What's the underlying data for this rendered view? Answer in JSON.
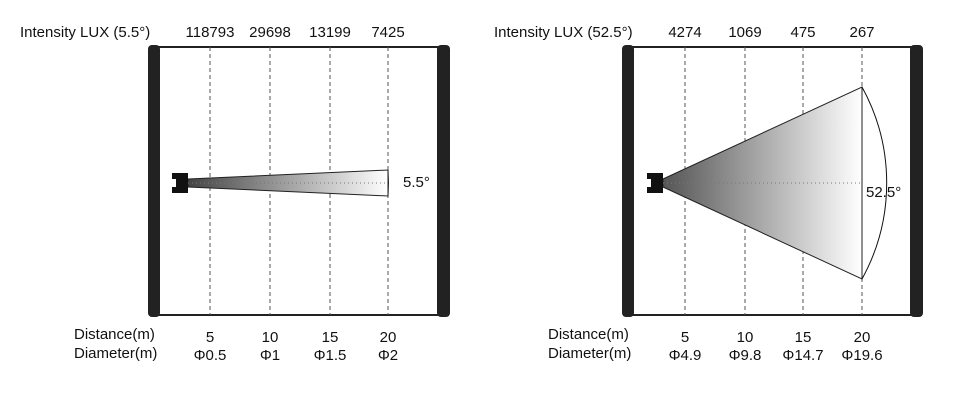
{
  "panels": [
    {
      "intensity_label": "Intensity LUX (5.5°)",
      "intensity": [
        "118793",
        "29698",
        "13199",
        "7425"
      ],
      "distance_label": "Distance(m)",
      "distances": [
        "5",
        "10",
        "15",
        "20"
      ],
      "diameter_label": "Diameter(m)",
      "diameters": [
        "Φ0.5",
        "Φ1",
        "Φ1.5",
        "Φ2"
      ],
      "angle_label": "5.5°"
    },
    {
      "intensity_label": "Intensity LUX (52.5°)",
      "intensity": [
        "4274",
        "1069",
        "475",
        "267"
      ],
      "distance_label": "Distance(m)",
      "distances": [
        "5",
        "10",
        "15",
        "20"
      ],
      "diameter_label": "Diameter(m)",
      "diameters": [
        "Φ4.9",
        "Φ9.8",
        "Φ14.7",
        "Φ19.6"
      ],
      "angle_label": "52.5°"
    }
  ]
}
